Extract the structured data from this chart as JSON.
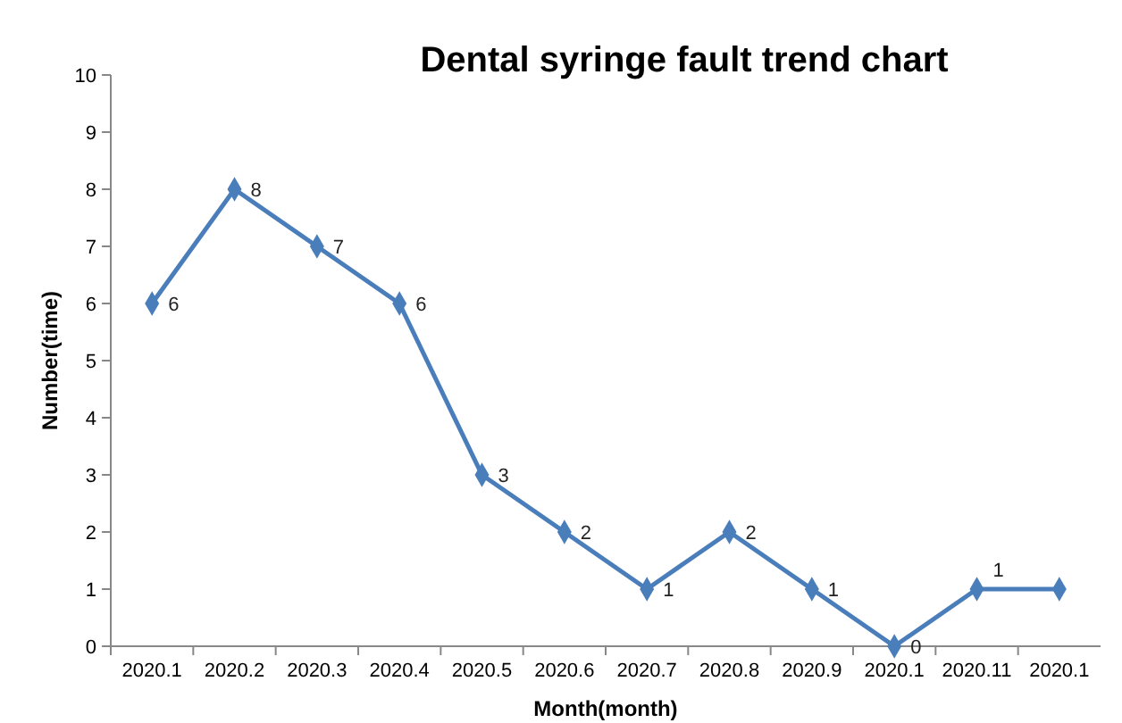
{
  "chart_data": {
    "type": "line",
    "title": "Dental syringe fault trend chart",
    "xlabel": "Month(month)",
    "ylabel": "Number(time)",
    "categories": [
      "2020.1",
      "2020.2",
      "2020.3",
      "2020.4",
      "2020.5",
      "2020.6",
      "2020.7",
      "2020.8",
      "2020.9",
      "2020.1",
      "2020.11",
      "2020.1"
    ],
    "series": [
      {
        "color": "#4a7ebb",
        "values": [
          6,
          8,
          7,
          6,
          3,
          2,
          1,
          2,
          1,
          0,
          1,
          1
        ],
        "value_labels": [
          "6",
          "8",
          "7",
          "6",
          "3",
          "2",
          "1",
          "2",
          "1",
          "0",
          "1",
          null
        ]
      }
    ],
    "ylim": [
      0,
      10
    ],
    "yticks": [
      0,
      1,
      2,
      3,
      4,
      5,
      6,
      7,
      8,
      9,
      10
    ],
    "grid": false,
    "marker": "diamond",
    "line_style": "solid"
  }
}
